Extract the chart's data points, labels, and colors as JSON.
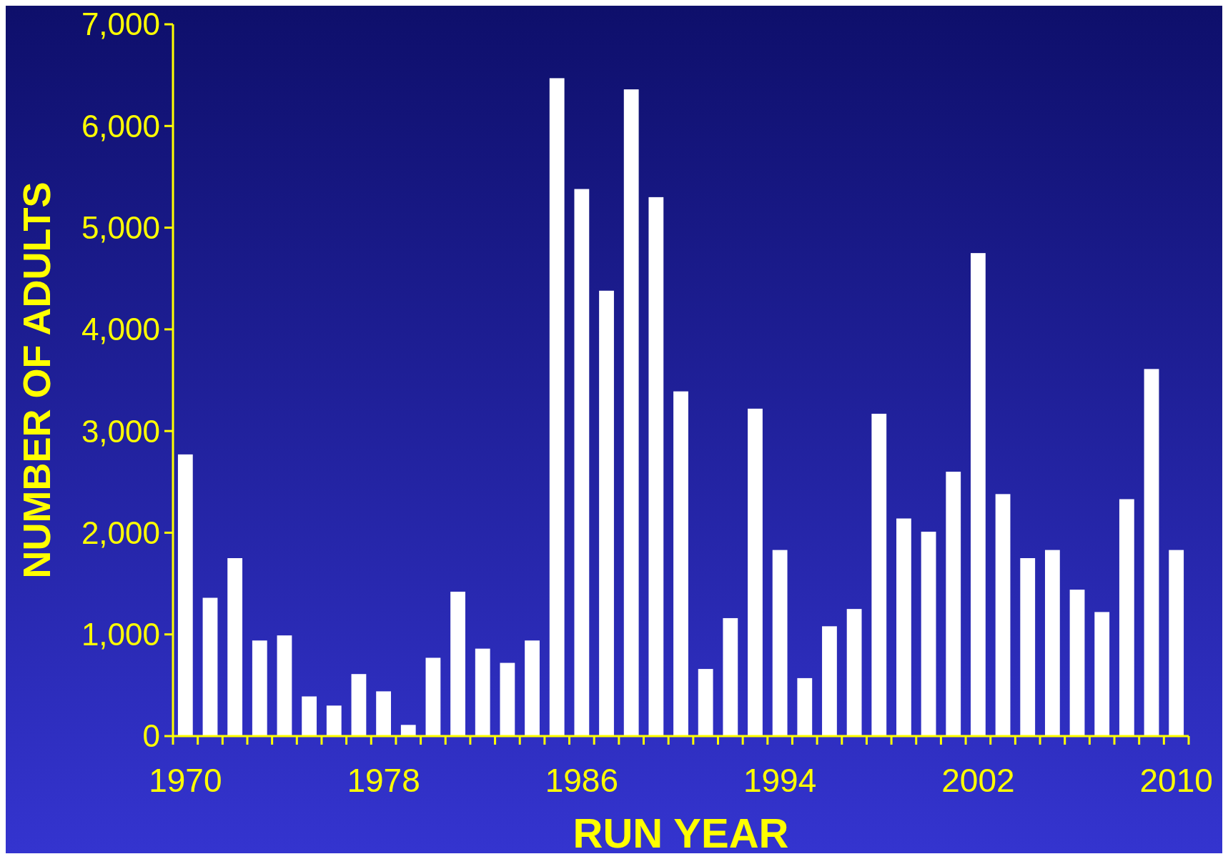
{
  "chart_data": {
    "type": "bar",
    "xlabel": "RUN YEAR",
    "ylabel": "NUMBER OF ADULTS",
    "categories": [
      "1970",
      null,
      null,
      null,
      null,
      null,
      null,
      null,
      "1978",
      null,
      null,
      null,
      null,
      null,
      null,
      null,
      "1986",
      null,
      null,
      null,
      null,
      null,
      null,
      null,
      "1994",
      null,
      null,
      null,
      null,
      null,
      null,
      null,
      "2002",
      null,
      null,
      null,
      null,
      null,
      null,
      null,
      "2010"
    ],
    "values": [
      2770,
      1360,
      1750,
      940,
      990,
      390,
      300,
      610,
      440,
      110,
      770,
      1420,
      860,
      720,
      940,
      6470,
      5380,
      4380,
      6360,
      5300,
      3390,
      660,
      1160,
      3220,
      1830,
      570,
      1080,
      1250,
      3170,
      2140,
      2010,
      2600,
      4750,
      2380,
      1750,
      1830,
      1440,
      1220,
      2330,
      3610,
      1830
    ],
    "color": "#ffffff",
    "ylim": [
      0,
      7000
    ],
    "yticks": [
      {
        "value": 0,
        "label": "0"
      },
      {
        "value": 1000,
        "label": "1,000"
      },
      {
        "value": 2000,
        "label": "2,000"
      },
      {
        "value": 3000,
        "label": "3,000"
      },
      {
        "value": 4000,
        "label": "4,000"
      },
      {
        "value": 5000,
        "label": "5,000"
      },
      {
        "value": 6000,
        "label": "6,000"
      },
      {
        "value": 7000,
        "label": "7,000"
      }
    ],
    "grid": false
  }
}
